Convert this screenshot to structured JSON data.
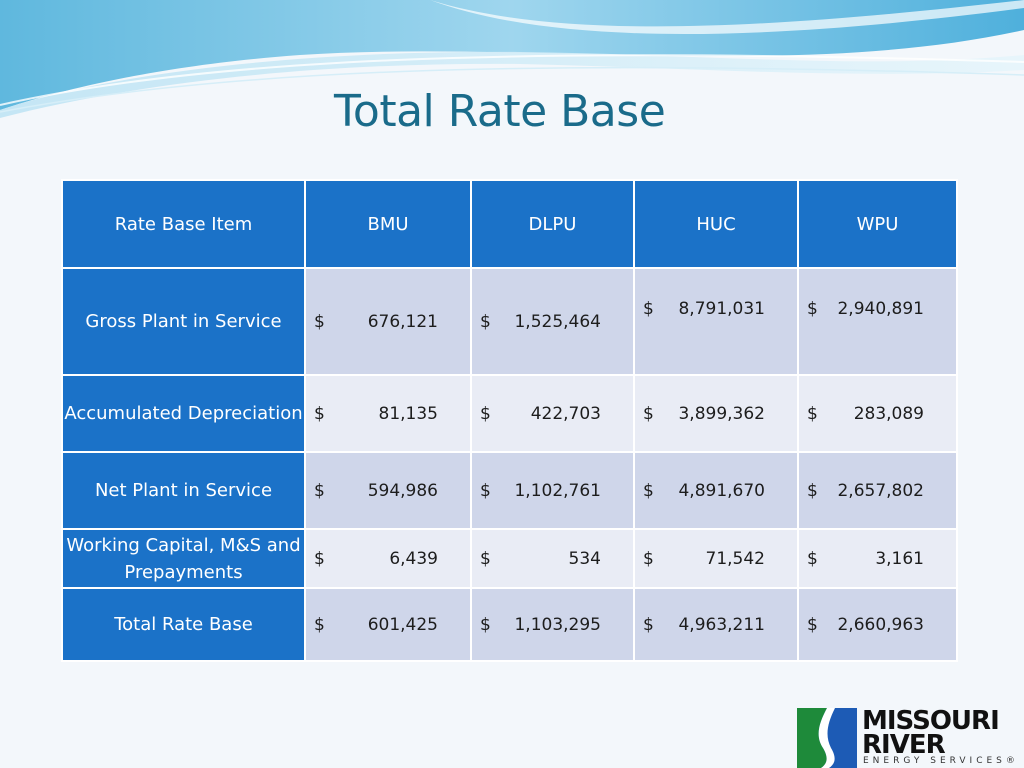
{
  "title": "Total Rate Base",
  "table": {
    "headers": [
      "Rate Base Item",
      "BMU",
      "DLPU",
      "HUC",
      "WPU"
    ],
    "rows": [
      {
        "item": "Gross Plant in Service",
        "values": [
          {
            "cur": "$",
            "amt": "676,121"
          },
          {
            "cur": "$",
            "amt": "1,525,464"
          },
          {
            "cur": "$",
            "amt": "8,791,031"
          },
          {
            "cur": "$",
            "amt": "2,940,891"
          }
        ]
      },
      {
        "item": "Accumulated Depreciation",
        "values": [
          {
            "cur": "$",
            "amt": "81,135"
          },
          {
            "cur": "$",
            "amt": "422,703"
          },
          {
            "cur": "$",
            "amt": "3,899,362"
          },
          {
            "cur": "$",
            "amt": "283,089"
          }
        ]
      },
      {
        "item": "Net Plant in Service",
        "values": [
          {
            "cur": "$",
            "amt": "594,986"
          },
          {
            "cur": "$",
            "amt": "1,102,761"
          },
          {
            "cur": "$",
            "amt": "4,891,670"
          },
          {
            "cur": "$",
            "amt": "2,657,802"
          }
        ]
      },
      {
        "item": "Working Capital, M&S and Prepayments",
        "values": [
          {
            "cur": "$",
            "amt": "6,439"
          },
          {
            "cur": "$",
            "amt": "534"
          },
          {
            "cur": "$",
            "amt": "71,542"
          },
          {
            "cur": "$",
            "amt": "3,161"
          }
        ]
      },
      {
        "item": "Total Rate Base",
        "values": [
          {
            "cur": "$",
            "amt": "601,425"
          },
          {
            "cur": "$",
            "amt": "1,103,295"
          },
          {
            "cur": "$",
            "amt": "4,963,211"
          },
          {
            "cur": "$",
            "amt": "2,660,963"
          }
        ]
      }
    ]
  },
  "logo": {
    "line1": "MISSOURI",
    "line2": "RIVER",
    "line3": "ENERGY SERVICES®"
  },
  "colors": {
    "header_blue": "#1b72c8",
    "title_teal": "#1a6b8a",
    "row_dark": "#cfd6ea",
    "row_light": "#e9ecf5"
  }
}
